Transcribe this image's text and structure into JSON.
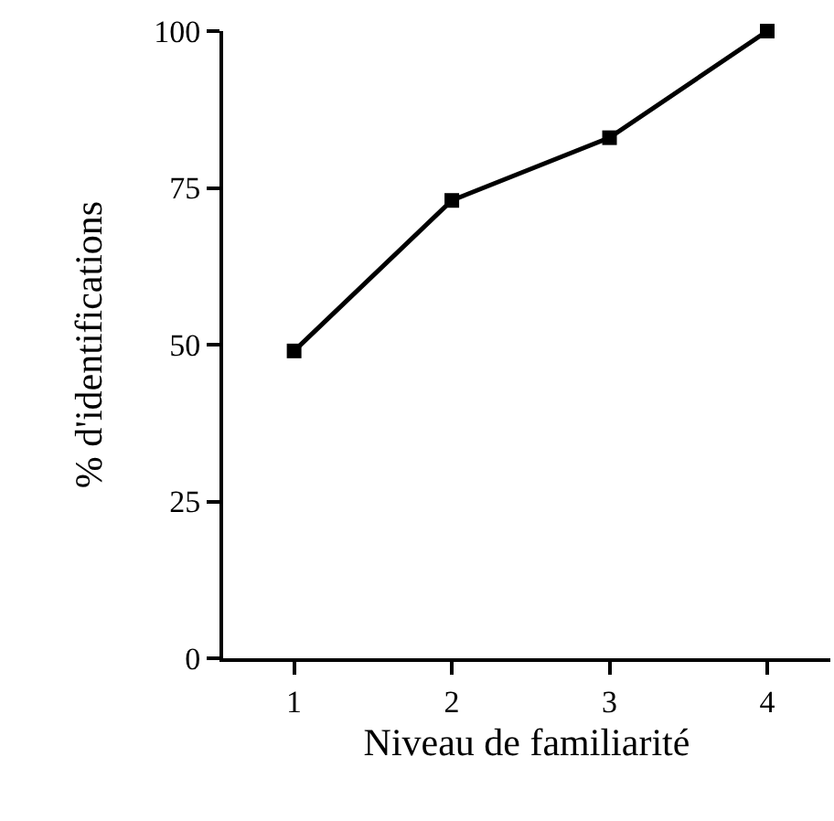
{
  "chart_data": {
    "type": "line",
    "xlabel": "Niveau de familiarité",
    "ylabel": "% d'identifications",
    "x": [
      1,
      2,
      3,
      4
    ],
    "values": [
      49,
      73,
      83,
      100
    ],
    "color": "#000000",
    "xlim": [
      0.55,
      4.4
    ],
    "xticks": [
      1,
      2,
      3,
      4
    ],
    "ylim": [
      0,
      100
    ],
    "yticks": [
      0,
      25,
      50,
      75,
      100
    ],
    "legend": false,
    "marker": "square",
    "line_style": "solid"
  }
}
